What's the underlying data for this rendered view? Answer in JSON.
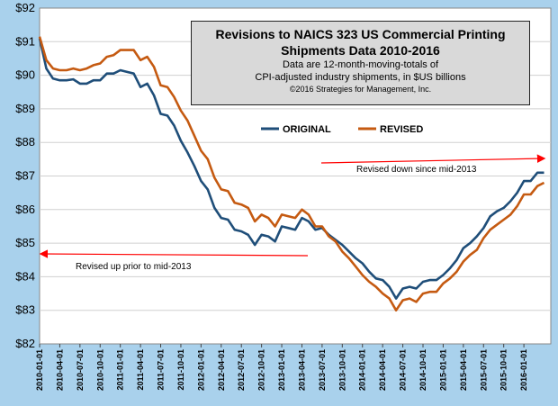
{
  "chart_data": {
    "type": "line",
    "title": "Revisions to NAICS 323 US Commercial Printing Shipments Data 2010-2016",
    "title_lines": [
      "Revisions to NAICS 323 US Commercial Printing",
      "Shipments Data 2010-2016"
    ],
    "subtitle_lines": [
      "Data are 12-month-moving-totals of",
      "CPI-adjusted industry shipments, in $US billions"
    ],
    "credit": "©2016 Strategies for Management, Inc.",
    "xlabel": "",
    "ylabel": "",
    "ylim": [
      82,
      92
    ],
    "y_ticks": [
      "$82",
      "$83",
      "$84",
      "$85",
      "$86",
      "$87",
      "$88",
      "$89",
      "$90",
      "$91",
      "$92"
    ],
    "x_ticks": [
      "2010-01",
      "2010-04",
      "2010-07",
      "2010-10",
      "2011-01",
      "2011-04",
      "2011-07",
      "2011-10",
      "2012-01",
      "2012-04",
      "2012-07",
      "2012-10",
      "2013-01",
      "2013-04",
      "2013-07",
      "2013-10",
      "2014-01",
      "2014-04",
      "2014-07",
      "2014-10",
      "2015-01",
      "2015-04",
      "2015-07",
      "2015-10",
      "2016-01"
    ],
    "x_tick_labels": [
      "2010-01-01",
      "2010-04-01",
      "2010-07-01",
      "2010-10-01",
      "2011-01-01",
      "2011-04-01",
      "2011-07-01",
      "2011-10-01",
      "2012-01-01",
      "2012-04-01",
      "2012-07-01",
      "2012-10-01",
      "2013-01-01",
      "2013-04-01",
      "2013-07-01",
      "2013-10-01",
      "2014-01-01",
      "2014-04-01",
      "2014-07-01",
      "2014-10-01",
      "2015-01-01",
      "2015-04-01",
      "2015-07-01",
      "2015-10-01",
      "2016-01-01"
    ],
    "grid": true,
    "legend_position": "top-center",
    "series": [
      {
        "name": "ORIGINAL",
        "color": "#1f4e79",
        "x": [
          "2010-01",
          "2010-02",
          "2010-03",
          "2010-04",
          "2010-05",
          "2010-06",
          "2010-07",
          "2010-08",
          "2010-09",
          "2010-10",
          "2010-11",
          "2010-12",
          "2011-01",
          "2011-02",
          "2011-03",
          "2011-04",
          "2011-05",
          "2011-06",
          "2011-07",
          "2011-08",
          "2011-09",
          "2011-10",
          "2011-11",
          "2011-12",
          "2012-01",
          "2012-02",
          "2012-03",
          "2012-04",
          "2012-05",
          "2012-06",
          "2012-07",
          "2012-08",
          "2012-09",
          "2012-10",
          "2012-11",
          "2012-12",
          "2013-01",
          "2013-02",
          "2013-03",
          "2013-04",
          "2013-05",
          "2013-06",
          "2013-07",
          "2013-08",
          "2013-09",
          "2013-10",
          "2013-11",
          "2013-12",
          "2014-01",
          "2014-02",
          "2014-03",
          "2014-04",
          "2014-05",
          "2014-06",
          "2014-07",
          "2014-08",
          "2014-09",
          "2014-10",
          "2014-11",
          "2014-12",
          "2015-01",
          "2015-02",
          "2015-03",
          "2015-04",
          "2015-05",
          "2015-06",
          "2015-07",
          "2015-08",
          "2015-09",
          "2015-10",
          "2015-11",
          "2015-12",
          "2016-01",
          "2016-02",
          "2016-03",
          "2016-04"
        ],
        "values": [
          91.1,
          90.2,
          89.9,
          89.85,
          89.85,
          89.88,
          89.75,
          89.75,
          89.85,
          89.85,
          90.05,
          90.05,
          90.15,
          90.1,
          90.05,
          89.65,
          89.75,
          89.4,
          88.85,
          88.8,
          88.5,
          88.05,
          87.7,
          87.3,
          86.85,
          86.6,
          86.05,
          85.75,
          85.7,
          85.4,
          85.35,
          85.25,
          84.95,
          85.25,
          85.2,
          85.05,
          85.5,
          85.45,
          85.4,
          85.75,
          85.65,
          85.4,
          85.45,
          85.25,
          85.1,
          84.95,
          84.75,
          84.55,
          84.4,
          84.15,
          83.95,
          83.9,
          83.7,
          83.35,
          83.65,
          83.7,
          83.65,
          83.85,
          83.9,
          83.9,
          84.05,
          84.25,
          84.5,
          84.85,
          85.0,
          85.2,
          85.45,
          85.8,
          85.95,
          86.05,
          86.25,
          86.5,
          86.85,
          86.85,
          87.1,
          87.1
        ]
      },
      {
        "name": "REVISED",
        "color": "#c55a11",
        "x": [
          "2010-01",
          "2010-02",
          "2010-03",
          "2010-04",
          "2010-05",
          "2010-06",
          "2010-07",
          "2010-08",
          "2010-09",
          "2010-10",
          "2010-11",
          "2010-12",
          "2011-01",
          "2011-02",
          "2011-03",
          "2011-04",
          "2011-05",
          "2011-06",
          "2011-07",
          "2011-08",
          "2011-09",
          "2011-10",
          "2011-11",
          "2011-12",
          "2012-01",
          "2012-02",
          "2012-03",
          "2012-04",
          "2012-05",
          "2012-06",
          "2012-07",
          "2012-08",
          "2012-09",
          "2012-10",
          "2012-11",
          "2012-12",
          "2013-01",
          "2013-02",
          "2013-03",
          "2013-04",
          "2013-05",
          "2013-06",
          "2013-07",
          "2013-08",
          "2013-09",
          "2013-10",
          "2013-11",
          "2013-12",
          "2014-01",
          "2014-02",
          "2014-03",
          "2014-04",
          "2014-05",
          "2014-06",
          "2014-07",
          "2014-08",
          "2014-09",
          "2014-10",
          "2014-11",
          "2014-12",
          "2015-01",
          "2015-02",
          "2015-03",
          "2015-04",
          "2015-05",
          "2015-06",
          "2015-07",
          "2015-08",
          "2015-09",
          "2015-10",
          "2015-11",
          "2015-12",
          "2016-01",
          "2016-02",
          "2016-03",
          "2016-04"
        ],
        "values": [
          91.15,
          90.45,
          90.2,
          90.15,
          90.15,
          90.2,
          90.15,
          90.2,
          90.3,
          90.35,
          90.55,
          90.6,
          90.75,
          90.75,
          90.75,
          90.45,
          90.55,
          90.25,
          89.7,
          89.65,
          89.35,
          88.95,
          88.65,
          88.2,
          87.75,
          87.5,
          86.95,
          86.6,
          86.55,
          86.2,
          86.15,
          86.05,
          85.65,
          85.85,
          85.75,
          85.5,
          85.85,
          85.8,
          85.75,
          86.0,
          85.85,
          85.5,
          85.5,
          85.2,
          85.05,
          84.75,
          84.55,
          84.3,
          84.05,
          83.85,
          83.7,
          83.5,
          83.35,
          83.0,
          83.3,
          83.35,
          83.25,
          83.5,
          83.55,
          83.55,
          83.8,
          83.95,
          84.15,
          84.45,
          84.65,
          84.8,
          85.15,
          85.4,
          85.55,
          85.7,
          85.85,
          86.1,
          86.45,
          86.45,
          86.7,
          86.8
        ]
      }
    ],
    "annotations": [
      {
        "text": "Revised down since mid-2013",
        "arrow": "right"
      },
      {
        "text": "Revised up prior to mid-2013",
        "arrow": "left"
      }
    ]
  },
  "colors": {
    "background": "#a9d1ec",
    "plot_area": "#ffffff",
    "gridline": "#d0d0d0",
    "arrow": "#ff0000",
    "title_box": "#d9d9d9"
  }
}
